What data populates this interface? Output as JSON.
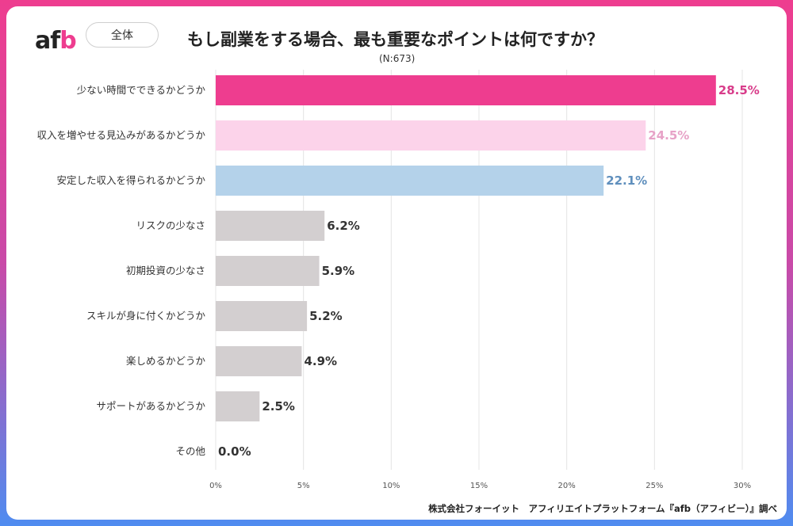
{
  "brand": {
    "logo_main": "af",
    "logo_accent": "b"
  },
  "header": {
    "scope": "全体",
    "title": "もし副業をする場合、最も重要なポイントは何ですか？",
    "sample_size": "(N:673)"
  },
  "footer": {
    "source": "株式会社フォーイット　アフィリエイトプラットフォーム『afb（アフィビー）』調べ"
  },
  "colors": {
    "top1": "#ee3d8f",
    "top2": "#fcd3ea",
    "top3": "#b4d2ea",
    "other": "#d3cfd0",
    "label1": "#d83c8a",
    "label2": "#e7a2c7",
    "label3": "#5f8fbd",
    "label_other": "#333333",
    "grid": "#e4e4e4"
  },
  "chart_data": {
    "type": "bar",
    "orientation": "horizontal",
    "title": "もし副業をする場合、最も重要なポイントは何ですか？",
    "categories": [
      "少ない時間でできるかどうか",
      "収入を増やせる見込みがあるかどうか",
      "安定した収入を得られるかどうか",
      "リスクの少なさ",
      "初期投資の少なさ",
      "スキルが身に付くかどうか",
      "楽しめるかどうか",
      "サポートがあるかどうか",
      "その他"
    ],
    "values": [
      28.5,
      24.5,
      22.1,
      6.2,
      5.9,
      5.2,
      4.9,
      2.5,
      0.0
    ],
    "value_labels": [
      "28.5%",
      "24.5%",
      "22.1%",
      "6.2%",
      "5.9%",
      "5.2%",
      "4.9%",
      "2.5%",
      "0.0%"
    ],
    "xlim": [
      0,
      30
    ],
    "ticks": [
      0,
      5,
      10,
      15,
      20,
      25,
      30
    ],
    "tick_labels": [
      "0%",
      "5%",
      "10%",
      "15%",
      "20%",
      "25%",
      "30%"
    ],
    "grid": true,
    "xlabel": "",
    "ylabel": ""
  }
}
